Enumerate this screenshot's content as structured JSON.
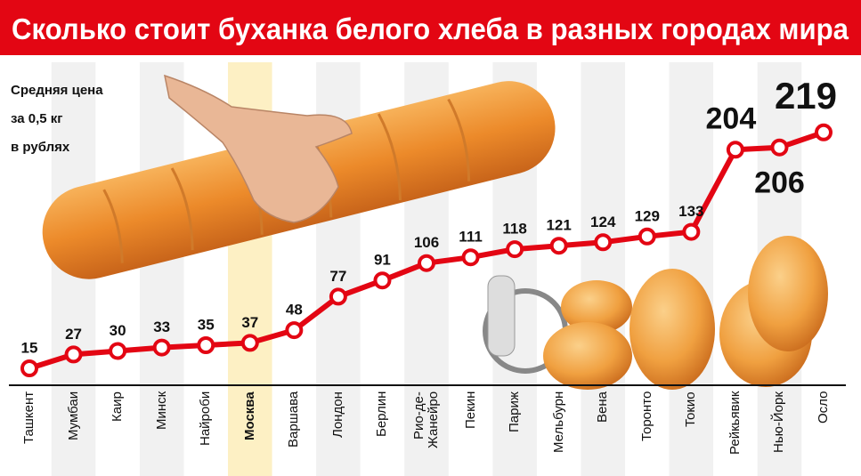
{
  "chart_data": {
    "type": "line",
    "title": "Сколько стоит буханка белого хлеба в разных городах мира",
    "subtitle": [
      "Средняя цена",
      "за 0,5 кг",
      "в рублях"
    ],
    "categories": [
      "Ташкент",
      "Мумбаи",
      "Каир",
      "Минск",
      "Найроби",
      "Москва",
      "Варшава",
      "Лондон",
      "Берлин",
      "Рио-де-Жанейро",
      "Пекин",
      "Париж",
      "Мельбурн",
      "Вена",
      "Торонто",
      "Токио",
      "Рейкьявик",
      "Нью-Йорк",
      "Осло"
    ],
    "values": [
      15,
      27,
      30,
      33,
      35,
      37,
      48,
      77,
      91,
      106,
      111,
      118,
      121,
      124,
      129,
      133,
      204,
      206,
      219
    ],
    "color": "#e30613",
    "highlight": 5
  }
}
